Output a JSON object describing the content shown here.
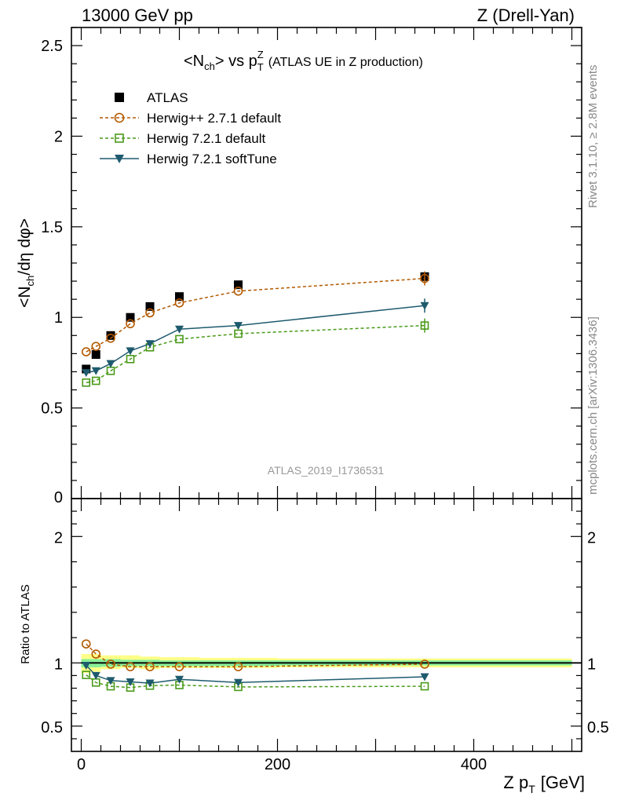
{
  "header": {
    "left": "13000 GeV pp",
    "right": "Z (Drell-Yan)"
  },
  "side_labels": {
    "rivet": "Rivet 3.1.10, ≥ 2.8M events",
    "mcplots": "mcplots.cern.ch [arXiv:1306.3436]"
  },
  "watermark": "ATLAS_2019_I1736531",
  "chart_data": [
    {
      "type": "line",
      "panel": "main",
      "title_prefix": "<N",
      "title_sub": "ch",
      "title_mid": "> vs p",
      "title_sup": "Z",
      "title_sub2": "T",
      "title_suffix": "(ATLAS UE in Z production)",
      "ylabel": "<Nch/dη dφ>",
      "ylim": [
        0,
        2.6
      ],
      "y_ticks": [
        "0.5",
        "1",
        "1.5",
        "2",
        "2.5"
      ],
      "y_tick_values": [
        0.5,
        1,
        1.5,
        2,
        2.5
      ],
      "y_zero_label": "0",
      "legend_position": "top-left",
      "series": [
        {
          "name": "ATLAS",
          "marker": "square",
          "color": "#000000",
          "line": "none",
          "x": [
            5,
            15,
            30,
            50,
            70,
            100,
            160,
            350
          ],
          "y": [
            0.715,
            0.795,
            0.9,
            1.0,
            1.06,
            1.115,
            1.18,
            1.225
          ]
        },
        {
          "name": "Herwig++ 2.7.1 default",
          "marker": "open-circle",
          "color": "#b35900",
          "line": "dashed",
          "x": [
            5,
            15,
            30,
            50,
            70,
            100,
            160,
            350
          ],
          "y": [
            0.81,
            0.84,
            0.885,
            0.965,
            1.025,
            1.08,
            1.145,
            1.215
          ]
        },
        {
          "name": "Herwig 7.2.1 default",
          "marker": "open-square",
          "color": "#4a9a1a",
          "line": "dashed",
          "x": [
            5,
            15,
            30,
            50,
            70,
            100,
            160,
            350
          ],
          "y": [
            0.64,
            0.65,
            0.705,
            0.77,
            0.835,
            0.88,
            0.91,
            0.955
          ]
        },
        {
          "name": "Herwig 7.2.1 softTune",
          "marker": "down-triangle",
          "color": "#1e5a6e",
          "line": "solid",
          "x": [
            5,
            15,
            30,
            50,
            70,
            100,
            160,
            350
          ],
          "y": [
            0.695,
            0.705,
            0.745,
            0.815,
            0.855,
            0.935,
            0.955,
            1.065
          ]
        }
      ]
    },
    {
      "type": "line",
      "panel": "ratio",
      "ylabel": "Ratio to ATLAS",
      "xlabel_main": "Z p",
      "xlabel_sub": "T",
      "xlabel_unit": "[GeV]",
      "xlim": [
        -10,
        510
      ],
      "x_ticks": [
        "0",
        "200",
        "400"
      ],
      "x_tick_values": [
        0,
        200,
        400
      ],
      "ylim": [
        0.3,
        2.3
      ],
      "y_ticks": [
        "0.5",
        "1",
        "2"
      ],
      "y_tick_values": [
        0.5,
        1,
        2
      ],
      "reference_line": 1,
      "bands": {
        "x_edges": [
          0,
          10,
          20,
          40,
          60,
          80,
          120,
          200,
          500
        ],
        "yellow": [
          [
            0.92,
            1.07
          ],
          [
            0.93,
            1.07
          ],
          [
            0.95,
            1.06
          ],
          [
            0.96,
            1.06
          ],
          [
            0.95,
            1.05
          ],
          [
            0.96,
            1.045
          ],
          [
            0.96,
            1.04
          ],
          [
            0.965,
            1.035
          ]
        ],
        "green": [
          [
            0.965,
            1.03
          ],
          [
            0.965,
            1.03
          ],
          [
            0.97,
            1.03
          ],
          [
            0.975,
            1.025
          ],
          [
            0.975,
            1.025
          ],
          [
            0.975,
            1.02
          ],
          [
            0.975,
            1.02
          ],
          [
            0.98,
            1.02
          ]
        ],
        "yellow_color": "#ffff88",
        "green_color": "#88ee99"
      },
      "series": [
        {
          "name": "Herwig++ 2.7.1 default",
          "marker": "open-circle",
          "color": "#b35900",
          "line": "dashed",
          "x": [
            5,
            15,
            30,
            50,
            70,
            100,
            160,
            350
          ],
          "y": [
            1.15,
            1.07,
            0.99,
            0.97,
            0.97,
            0.97,
            0.97,
            0.99
          ]
        },
        {
          "name": "Herwig 7.2.1 default",
          "marker": "open-square",
          "color": "#4a9a1a",
          "line": "dashed",
          "x": [
            5,
            15,
            30,
            50,
            70,
            100,
            160,
            350
          ],
          "y": [
            0.905,
            0.845,
            0.815,
            0.805,
            0.82,
            0.825,
            0.81,
            0.815
          ]
        },
        {
          "name": "Herwig 7.2.1 softTune",
          "marker": "down-triangle",
          "color": "#1e5a6e",
          "line": "solid",
          "x": [
            5,
            15,
            30,
            50,
            70,
            100,
            160,
            350
          ],
          "y": [
            0.98,
            0.9,
            0.86,
            0.85,
            0.84,
            0.87,
            0.845,
            0.89
          ]
        }
      ]
    }
  ]
}
